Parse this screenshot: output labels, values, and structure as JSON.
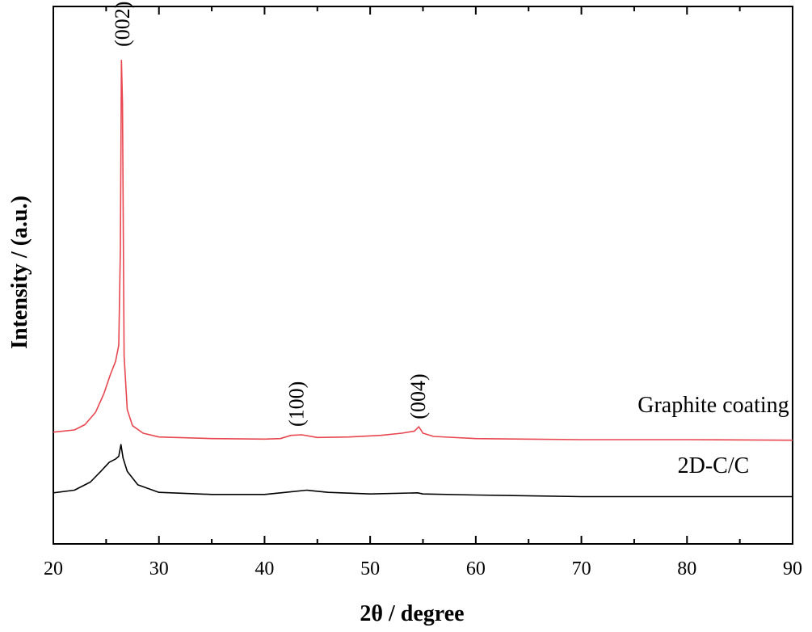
{
  "chart_data": {
    "type": "line",
    "title": "",
    "xlabel": "2θ / degree",
    "ylabel": "Intensity / (a.u.)",
    "xlim": [
      20,
      90
    ],
    "ylim": [
      0,
      100
    ],
    "x_ticks": [
      20,
      30,
      40,
      50,
      60,
      70,
      80,
      90
    ],
    "x_tick_labels": [
      "20",
      "30",
      "40",
      "50",
      "60",
      "70",
      "80",
      "90"
    ],
    "y_tick_labels_shown": false,
    "grid": false,
    "series": [
      {
        "name": "Graphite coating",
        "color": "#e8474f",
        "points": [
          [
            20,
            20.8
          ],
          [
            22,
            21.2
          ],
          [
            23,
            22.2
          ],
          [
            24,
            24.5
          ],
          [
            24.8,
            28.0
          ],
          [
            25.4,
            31.5
          ],
          [
            25.9,
            34.0
          ],
          [
            26.2,
            37.0
          ],
          [
            26.35,
            55.0
          ],
          [
            26.45,
            90.0
          ],
          [
            26.55,
            82.0
          ],
          [
            26.7,
            35.0
          ],
          [
            27.0,
            25.0
          ],
          [
            27.5,
            22.0
          ],
          [
            28.5,
            20.6
          ],
          [
            30,
            19.9
          ],
          [
            35,
            19.6
          ],
          [
            40,
            19.5
          ],
          [
            41.5,
            19.6
          ],
          [
            42.5,
            20.2
          ],
          [
            43.5,
            20.3
          ],
          [
            45,
            19.8
          ],
          [
            48,
            19.9
          ],
          [
            51,
            20.2
          ],
          [
            53,
            20.6
          ],
          [
            54.2,
            21.0
          ],
          [
            54.6,
            21.8
          ],
          [
            55.0,
            20.6
          ],
          [
            56,
            20.0
          ],
          [
            60,
            19.6
          ],
          [
            70,
            19.4
          ],
          [
            80,
            19.4
          ],
          [
            90,
            19.3
          ]
        ]
      },
      {
        "name": "2D-C/C",
        "color": "#000000",
        "points": [
          [
            20,
            9.5
          ],
          [
            22,
            10.0
          ],
          [
            23.5,
            11.5
          ],
          [
            24.5,
            13.5
          ],
          [
            25.3,
            15.2
          ],
          [
            25.9,
            15.8
          ],
          [
            26.2,
            16.3
          ],
          [
            26.4,
            18.5
          ],
          [
            26.6,
            16.0
          ],
          [
            27.0,
            13.5
          ],
          [
            28,
            11.0
          ],
          [
            30,
            9.6
          ],
          [
            35,
            9.2
          ],
          [
            40,
            9.2
          ],
          [
            42,
            9.6
          ],
          [
            44,
            10.0
          ],
          [
            46,
            9.6
          ],
          [
            50,
            9.3
          ],
          [
            54.5,
            9.5
          ],
          [
            55,
            9.3
          ],
          [
            60,
            9.1
          ],
          [
            70,
            8.8
          ],
          [
            80,
            8.8
          ],
          [
            90,
            8.8
          ]
        ]
      }
    ],
    "series_labels": [
      {
        "text": "Graphite coating",
        "x": 82.5,
        "y": 24.5
      },
      {
        "text": "2D-C/C",
        "x": 82.5,
        "y": 13.2
      }
    ],
    "annotations": [
      {
        "text": "(002)",
        "x": 26.5,
        "y": 92.5
      },
      {
        "text": "(100)",
        "x": 43.0,
        "y": 21.8
      },
      {
        "text": "(004)",
        "x": 54.5,
        "y": 23.2
      }
    ]
  }
}
